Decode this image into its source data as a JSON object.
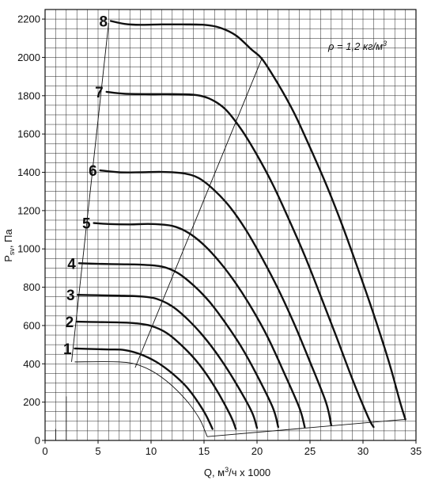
{
  "chart_data": {
    "type": "line",
    "title": "",
    "xlabel": "Q, м³/ч x 1000",
    "ylabel": "Psv, Па",
    "xlabel_parts": {
      "pre": "Q, м",
      "sup": "3",
      "post": "/ч x 1000"
    },
    "ylabel_parts": {
      "pre": "P",
      "sub": "sv",
      "post": ", Па"
    },
    "annotation": "ρ = 1,2 кг/м³",
    "annotation_parts": {
      "pre": "ρ = 1,2 кг/м",
      "sup": "3"
    },
    "xlim": [
      0,
      35
    ],
    "ylim": [
      0,
      2250
    ],
    "x_ticks": [
      0,
      5,
      10,
      15,
      20,
      25,
      30,
      35
    ],
    "x_tick_labels": [
      "0",
      "5",
      "10",
      "15",
      "20",
      "25",
      "30",
      "35"
    ],
    "y_ticks": [
      0,
      200,
      400,
      600,
      800,
      1000,
      1200,
      1400,
      1600,
      1800,
      2000,
      2200
    ],
    "y_tick_labels": [
      "0",
      "200",
      "400",
      "600",
      "800",
      "1000",
      "1200",
      "1400",
      "1600",
      "1800",
      "2000",
      "2200"
    ],
    "grid": true,
    "series": [
      {
        "name": "1",
        "label": "1",
        "points": [
          [
            2.8,
            480
          ],
          [
            4,
            478
          ],
          [
            6,
            475
          ],
          [
            7.5,
            472
          ],
          [
            9,
            450
          ],
          [
            10.5,
            410
          ],
          [
            12,
            350
          ],
          [
            13.5,
            270
          ],
          [
            15,
            150
          ],
          [
            15.8,
            60
          ]
        ]
      },
      {
        "name": "2",
        "label": "2",
        "points": [
          [
            3,
            620
          ],
          [
            5,
            618
          ],
          [
            7,
            616
          ],
          [
            8.5,
            612
          ],
          [
            10,
            598
          ],
          [
            11.5,
            560
          ],
          [
            13,
            490
          ],
          [
            14.5,
            400
          ],
          [
            16,
            280
          ],
          [
            17.5,
            130
          ],
          [
            18,
            60
          ]
        ]
      },
      {
        "name": "3",
        "label": "3",
        "points": [
          [
            3.1,
            760
          ],
          [
            5,
            758
          ],
          [
            7,
            756
          ],
          [
            9,
            752
          ],
          [
            10.5,
            740
          ],
          [
            12,
            700
          ],
          [
            13.5,
            630
          ],
          [
            15,
            540
          ],
          [
            16.5,
            430
          ],
          [
            18,
            300
          ],
          [
            19.5,
            150
          ],
          [
            20,
            65
          ]
        ]
      },
      {
        "name": "4",
        "label": "4",
        "points": [
          [
            3.2,
            925
          ],
          [
            5,
            922
          ],
          [
            7,
            920
          ],
          [
            9,
            918
          ],
          [
            11,
            908
          ],
          [
            12.5,
            875
          ],
          [
            14,
            810
          ],
          [
            15.5,
            725
          ],
          [
            17,
            615
          ],
          [
            18.5,
            490
          ],
          [
            20,
            340
          ],
          [
            21.5,
            170
          ],
          [
            22,
            70
          ]
        ]
      },
      {
        "name": "5",
        "label": "5",
        "points": [
          [
            4.6,
            1135
          ],
          [
            6,
            1130
          ],
          [
            8,
            1128
          ],
          [
            10,
            1130
          ],
          [
            12,
            1120
          ],
          [
            13.5,
            1085
          ],
          [
            15,
            1020
          ],
          [
            16.5,
            930
          ],
          [
            18,
            820
          ],
          [
            19.5,
            690
          ],
          [
            21,
            540
          ],
          [
            22.5,
            360
          ],
          [
            24,
            170
          ],
          [
            24.5,
            70
          ]
        ]
      },
      {
        "name": "6",
        "label": "6",
        "points": [
          [
            5.2,
            1410
          ],
          [
            7,
            1400
          ],
          [
            9,
            1400
          ],
          [
            11,
            1402
          ],
          [
            13,
            1395
          ],
          [
            14.5,
            1370
          ],
          [
            16,
            1305
          ],
          [
            17.5,
            1215
          ],
          [
            19,
            1095
          ],
          [
            20.5,
            950
          ],
          [
            22,
            790
          ],
          [
            23.5,
            610
          ],
          [
            25,
            410
          ],
          [
            26.5,
            200
          ],
          [
            27,
            80
          ]
        ]
      },
      {
        "name": "7",
        "label": "7",
        "points": [
          [
            5.8,
            1820
          ],
          [
            7.5,
            1810
          ],
          [
            10,
            1808
          ],
          [
            12,
            1808
          ],
          [
            14,
            1805
          ],
          [
            15.5,
            1785
          ],
          [
            17,
            1730
          ],
          [
            18.5,
            1625
          ],
          [
            20,
            1490
          ],
          [
            21.5,
            1335
          ],
          [
            23,
            1155
          ],
          [
            24.5,
            965
          ],
          [
            26,
            755
          ],
          [
            27.5,
            540
          ],
          [
            29,
            320
          ],
          [
            30.5,
            120
          ],
          [
            31,
            70
          ]
        ]
      },
      {
        "name": "8",
        "label": "8",
        "points": [
          [
            6.2,
            2190
          ],
          [
            7.5,
            2175
          ],
          [
            9,
            2170
          ],
          [
            11,
            2172
          ],
          [
            13,
            2172
          ],
          [
            15,
            2170
          ],
          [
            16.5,
            2155
          ],
          [
            18,
            2115
          ],
          [
            19.5,
            2040
          ],
          [
            20.5,
            1990
          ],
          [
            22,
            1860
          ],
          [
            23.5,
            1710
          ],
          [
            25,
            1530
          ],
          [
            26.5,
            1340
          ],
          [
            28,
            1130
          ],
          [
            29.5,
            900
          ],
          [
            31,
            660
          ],
          [
            32.5,
            400
          ],
          [
            33.5,
            200
          ],
          [
            34,
            110
          ]
        ]
      }
    ],
    "boundary_lines": [
      {
        "points": [
          [
            2.5,
            410
          ],
          [
            6,
            2180
          ]
        ]
      },
      {
        "points": [
          [
            8.5,
            380
          ],
          [
            20.5,
            2000
          ]
        ]
      },
      {
        "points": [
          [
            2.8,
            410
          ],
          [
            7,
            410
          ],
          [
            9,
            390
          ],
          [
            11,
            330
          ],
          [
            13,
            230
          ],
          [
            14.5,
            120
          ],
          [
            15.3,
            20
          ]
        ]
      },
      {
        "points": [
          [
            15.3,
            20
          ],
          [
            34,
            110
          ]
        ]
      }
    ],
    "stub_lines": [
      {
        "points": [
          [
            1,
            0
          ],
          [
            1,
            60
          ]
        ]
      },
      {
        "points": [
          [
            2,
            0
          ],
          [
            2,
            230
          ]
        ]
      }
    ]
  }
}
